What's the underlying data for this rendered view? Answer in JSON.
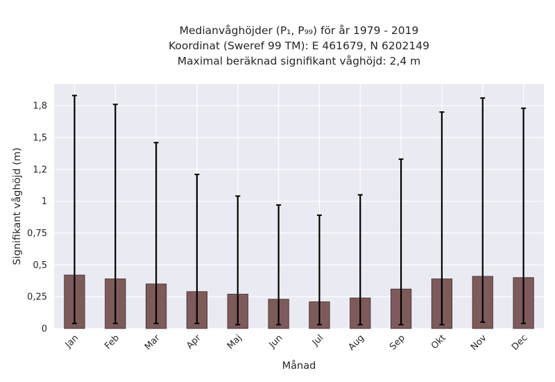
{
  "chart_data": {
    "type": "bar",
    "title": [
      "Medianvåghöjder (P₁, P₉₉) för år 1979 - 2019",
      "Koordinat (Sweref 99 TM): E 461679, N 6202149",
      "Maximal beräknad signifikant våghöjd: 2,4 m"
    ],
    "xlabel": "Månad",
    "ylabel": "Signifikant våghöjd (m)",
    "categories": [
      "Jan",
      "Feb",
      "Mar",
      "Apr",
      "Maj",
      "Jun",
      "Jul",
      "Aug",
      "Sep",
      "Okt",
      "Nov",
      "Dec"
    ],
    "values": [
      0.42,
      0.39,
      0.35,
      0.29,
      0.27,
      0.23,
      0.21,
      0.24,
      0.31,
      0.39,
      0.41,
      0.4
    ],
    "p1": [
      0.04,
      0.04,
      0.04,
      0.04,
      0.03,
      0.03,
      0.03,
      0.03,
      0.03,
      0.03,
      0.05,
      0.04
    ],
    "p99": [
      1.83,
      1.76,
      1.46,
      1.21,
      1.04,
      0.97,
      0.89,
      1.05,
      1.33,
      1.7,
      1.81,
      1.73
    ],
    "yticks": [
      {
        "v": 0,
        "label": "0"
      },
      {
        "v": 0.25,
        "label": "0,25"
      },
      {
        "v": 0.5,
        "label": "0,5"
      },
      {
        "v": 0.75,
        "label": "0,75"
      },
      {
        "v": 1.0,
        "label": "1"
      },
      {
        "v": 1.25,
        "label": "1,2"
      },
      {
        "v": 1.5,
        "label": "1,5"
      },
      {
        "v": 1.75,
        "label": "1,8"
      }
    ],
    "ylim": [
      0,
      1.92
    ],
    "grid": true,
    "colors": {
      "bar": "#7e5b5b",
      "bar_edge": "#3a2a2a",
      "errorbar": "#000000",
      "plot_bg": "#eaeaf2",
      "grid": "#ffffff"
    }
  }
}
